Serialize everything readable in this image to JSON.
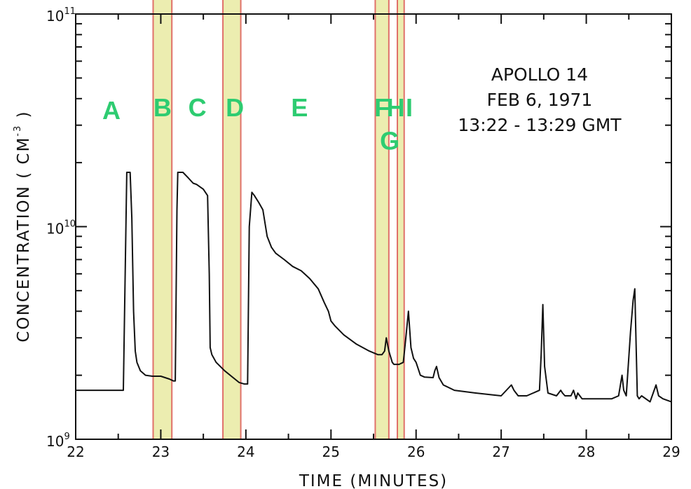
{
  "chart_data": {
    "type": "line",
    "title": "",
    "xlabel": "TIME (MINUTES)",
    "ylabel": "CONCENTRATION ( CM",
    "ylabel_exponent": "-3",
    "ylabel_close": " )",
    "xlim": [
      22,
      29
    ],
    "ylim": [
      1000000000.0,
      100000000000.0
    ],
    "yscale": "log",
    "grid": false,
    "x_ticks": [
      "22",
      "23",
      "24",
      "25",
      "26",
      "27",
      "28",
      "29"
    ],
    "y_ticks": [
      {
        "base": "10",
        "exp": "9",
        "value": 1000000000.0
      },
      {
        "base": "10",
        "exp": "10",
        "value": 10000000000.0
      },
      {
        "base": "10",
        "exp": "11",
        "value": 100000000000.0
      }
    ],
    "annotation": [
      "APOLLO 14",
      "FEB 6, 1971",
      "13:22 - 13:29 GMT"
    ],
    "highlight_color": "#ecedb0",
    "highlight_border_color": "#e0706a",
    "label_color": "#2ecc71",
    "line_color": "#111111",
    "highlight_bands": [
      {
        "x0": 22.91,
        "x1": 23.13
      },
      {
        "x0": 23.73,
        "x1": 23.94
      },
      {
        "x0": 25.52,
        "x1": 25.68
      },
      {
        "x0": 25.78,
        "x1": 25.86
      }
    ],
    "region_labels": [
      {
        "text": "A",
        "x": 22.42,
        "y": 32000000000.0
      },
      {
        "text": "B",
        "x": 23.02,
        "y": 33000000000.0
      },
      {
        "text": "C",
        "x": 23.43,
        "y": 33000000000.0
      },
      {
        "text": "D",
        "x": 23.87,
        "y": 33000000000.0
      },
      {
        "text": "E",
        "x": 24.63,
        "y": 33000000000.0
      },
      {
        "text": "F",
        "x": 25.6,
        "y": 33000000000.0
      },
      {
        "text": "H",
        "x": 25.76,
        "y": 33000000000.0
      },
      {
        "text": "I",
        "x": 25.92,
        "y": 33000000000.0
      },
      {
        "text": "G",
        "x": 25.69,
        "y": 23000000000.0
      }
    ],
    "series": [
      {
        "x": [
          22.0,
          22.3,
          22.5,
          22.56,
          22.6,
          22.62,
          22.64,
          22.66,
          22.68,
          22.7,
          22.72,
          22.76,
          22.82,
          22.9,
          23.0,
          23.1,
          23.15,
          23.17,
          23.19,
          23.2,
          23.22,
          23.26,
          23.32,
          23.38,
          23.42,
          23.5,
          23.55,
          23.57,
          23.58,
          23.6,
          23.65,
          23.75,
          23.85,
          23.92,
          23.98,
          24.02,
          24.04,
          24.07,
          24.1,
          24.15,
          24.2,
          24.25,
          24.3,
          24.35,
          24.45,
          24.55,
          24.65,
          24.75,
          24.85,
          24.92,
          24.97,
          25.0,
          25.05,
          25.15,
          25.3,
          25.45,
          25.55,
          25.6,
          25.63,
          25.65,
          25.68,
          25.72,
          25.74,
          25.76,
          25.8,
          25.85,
          25.88,
          25.91,
          25.94,
          25.97,
          26.0,
          26.05,
          26.1,
          26.2,
          26.22,
          26.24,
          26.27,
          26.32,
          26.45,
          26.7,
          27.0,
          27.12,
          27.15,
          27.2,
          27.3,
          27.45,
          27.47,
          27.49,
          27.51,
          27.55,
          27.65,
          27.7,
          27.72,
          27.75,
          27.82,
          27.85,
          27.88,
          27.9,
          27.95,
          28.1,
          28.3,
          28.38,
          28.42,
          28.44,
          28.47,
          28.52,
          28.55,
          28.57,
          28.6,
          28.62,
          28.65,
          28.75,
          28.82,
          28.85,
          28.9,
          29.0
        ],
        "y": [
          1700000000.0,
          1700000000.0,
          1700000000.0,
          1700000000.0,
          18000000000.0,
          18000000000.0,
          18000000000.0,
          11000000000.0,
          4000000000.0,
          2600000000.0,
          2300000000.0,
          2100000000.0,
          2000000000.0,
          1980000000.0,
          1980000000.0,
          1920000000.0,
          1880000000.0,
          1880000000.0,
          12000000000.0,
          18000000000.0,
          18000000000.0,
          18000000000.0,
          17000000000.0,
          16000000000.0,
          15800000000.0,
          15000000000.0,
          14000000000.0,
          6000000000.0,
          2700000000.0,
          2500000000.0,
          2300000000.0,
          2100000000.0,
          1950000000.0,
          1850000000.0,
          1820000000.0,
          1820000000.0,
          10000000000.0,
          14500000000.0,
          14000000000.0,
          13000000000.0,
          12000000000.0,
          9000000000.0,
          8000000000.0,
          7500000000.0,
          7000000000.0,
          6500000000.0,
          6200000000.0,
          5700000000.0,
          5100000000.0,
          4400000000.0,
          4000000000.0,
          3600000000.0,
          3400000000.0,
          3100000000.0,
          2800000000.0,
          2600000000.0,
          2500000000.0,
          2500000000.0,
          2600000000.0,
          3000000000.0,
          2600000000.0,
          2300000000.0,
          2250000000.0,
          2250000000.0,
          2250000000.0,
          2300000000.0,
          3000000000.0,
          4000000000.0,
          2700000000.0,
          2400000000.0,
          2300000000.0,
          2000000000.0,
          1960000000.0,
          1950000000.0,
          2100000000.0,
          2200000000.0,
          1950000000.0,
          1800000000.0,
          1700000000.0,
          1650000000.0,
          1600000000.0,
          1800000000.0,
          1700000000.0,
          1600000000.0,
          1600000000.0,
          1700000000.0,
          2500000000.0,
          4300000000.0,
          2200000000.0,
          1650000000.0,
          1600000000.0,
          1700000000.0,
          1650000000.0,
          1600000000.0,
          1600000000.0,
          1700000000.0,
          1550000000.0,
          1650000000.0,
          1550000000.0,
          1550000000.0,
          1550000000.0,
          1600000000.0,
          2000000000.0,
          1700000000.0,
          1600000000.0,
          3200000000.0,
          4500000000.0,
          5100000000.0,
          1600000000.0,
          1550000000.0,
          1600000000.0,
          1500000000.0,
          1800000000.0,
          1600000000.0,
          1550000000.0,
          1500000000.0
        ]
      }
    ]
  }
}
